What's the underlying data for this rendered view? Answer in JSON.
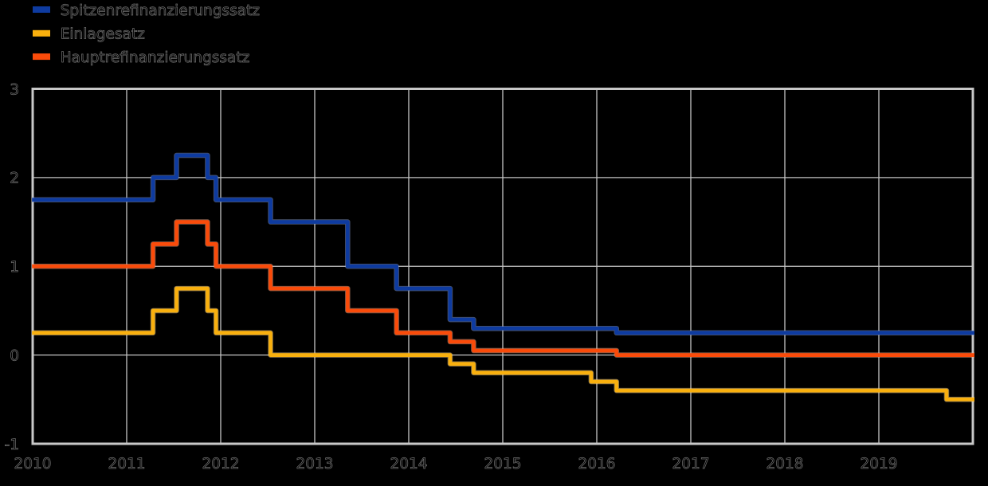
{
  "background_color": "#000000",
  "chart_data": {
    "type": "line",
    "step": true,
    "title": "",
    "subtitle": "",
    "x_axis": {
      "range": [
        2010,
        2020
      ],
      "ticks": [
        2010,
        2011,
        2012,
        2013,
        2014,
        2015,
        2016,
        2017,
        2018,
        2019
      ],
      "tick_labels": [
        "2010",
        "2011",
        "2012",
        "2013",
        "2014",
        "2015",
        "2016",
        "2017",
        "2018",
        "2019"
      ],
      "grid": true
    },
    "y_axis": {
      "range": [
        -1,
        3
      ],
      "ticks": [
        3,
        2,
        1,
        0,
        -1
      ],
      "tick_labels": [
        "3",
        "2",
        "1",
        "0",
        "-1"
      ],
      "grid": true
    },
    "legend": {
      "position": "top-left"
    },
    "series": [
      {
        "name": "Spitzenrefinanzierungssatz",
        "color": "#0e3ba0",
        "halo_color": "#8ba0d2",
        "points": [
          [
            2010.0,
            1.75
          ],
          [
            2011.28,
            2.0
          ],
          [
            2011.53,
            2.25
          ],
          [
            2011.86,
            2.0
          ],
          [
            2011.95,
            1.75
          ],
          [
            2012.53,
            1.5
          ],
          [
            2013.35,
            1.0
          ],
          [
            2013.87,
            0.75
          ],
          [
            2014.44,
            0.4
          ],
          [
            2014.69,
            0.3
          ],
          [
            2016.21,
            0.25
          ],
          [
            2020.0,
            0.25
          ]
        ]
      },
      {
        "name": "Einlagesatz",
        "color": "#f9b00e",
        "halo_color": "#fdd992",
        "points": [
          [
            2010.0,
            0.25
          ],
          [
            2011.28,
            0.5
          ],
          [
            2011.53,
            0.75
          ],
          [
            2011.86,
            0.5
          ],
          [
            2011.95,
            0.25
          ],
          [
            2012.53,
            0.0
          ],
          [
            2014.44,
            -0.1
          ],
          [
            2014.69,
            -0.2
          ],
          [
            2015.94,
            -0.3
          ],
          [
            2016.21,
            -0.4
          ],
          [
            2019.72,
            -0.5
          ],
          [
            2020.0,
            -0.5
          ]
        ]
      },
      {
        "name": "Hauptrefinanzierungssatz",
        "color": "#fa4b0a",
        "halo_color": "#fdaf8e",
        "points": [
          [
            2010.0,
            1.0
          ],
          [
            2011.28,
            1.25
          ],
          [
            2011.53,
            1.5
          ],
          [
            2011.86,
            1.25
          ],
          [
            2011.95,
            1.0
          ],
          [
            2012.53,
            0.75
          ],
          [
            2013.35,
            0.5
          ],
          [
            2013.87,
            0.25
          ],
          [
            2014.44,
            0.15
          ],
          [
            2014.69,
            0.05
          ],
          [
            2016.21,
            0.0
          ],
          [
            2020.0,
            0.0
          ]
        ]
      }
    ],
    "style": {
      "grid_color": "#c4c4c4",
      "spine_color": "#c8c8c8",
      "text_outline_color": "#6e6e6e",
      "text_outline_width": 0.75,
      "text_fill_color": "#000000",
      "line_width": 4.7,
      "halo_extra_width": 1.8,
      "halo_opacity": 0.5,
      "grid_width": 1.3,
      "spine_width": 3
    }
  }
}
